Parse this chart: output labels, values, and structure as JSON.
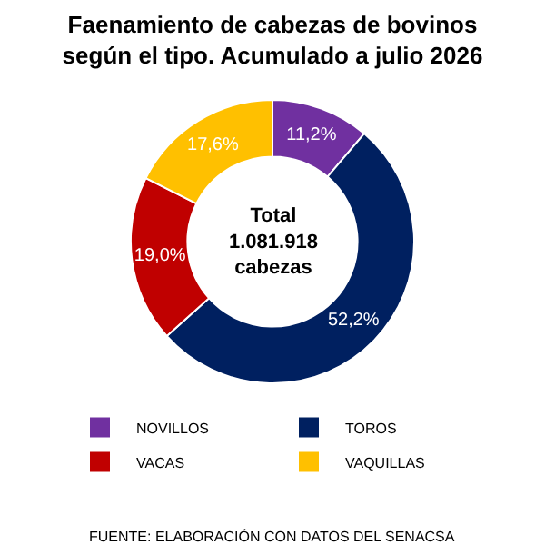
{
  "chart_data": {
    "type": "donut",
    "title": "Faenamiento de cabezas de bovinos\nsegún el tipo. Acumulado a julio 2026",
    "categories": [
      "NOVILLOS",
      "TOROS",
      "VACAS",
      "VAQUILLAS"
    ],
    "values": [
      11.2,
      52.2,
      19.0,
      17.6
    ],
    "colors": [
      "#7030a0",
      "#002060",
      "#c00000",
      "#ffc000"
    ],
    "value_labels": [
      "11,2%",
      "52,2%",
      "19,0%",
      "17,6%"
    ],
    "annotations": [
      "Total\n1.081.918\ncabezas",
      "FUENTE: ELABORACIÓN CON DATOS DEL SENACSA"
    ],
    "legend": "bottom"
  }
}
